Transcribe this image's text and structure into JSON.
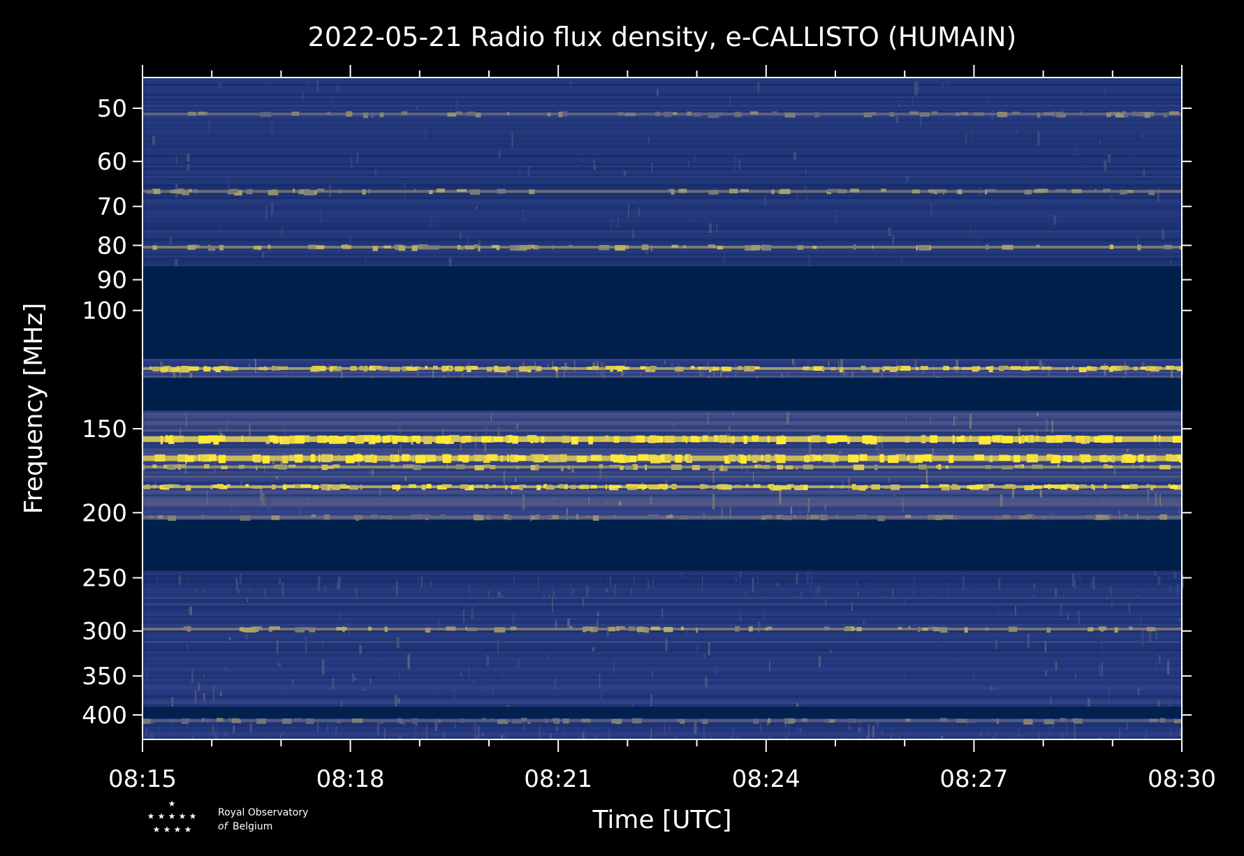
{
  "chart_data": {
    "type": "heatmap",
    "title": "2022-05-21 Radio flux density, e-CALLISTO (HUMAIN)",
    "xlabel": "Time [UTC]",
    "ylabel": "Frequency [MHz]",
    "x_ticks": [
      "08:15",
      "08:18",
      "08:21",
      "08:24",
      "08:27",
      "08:30"
    ],
    "x_range": [
      "08:15",
      "08:30"
    ],
    "y_scale": "log",
    "y_range": [
      45,
      435
    ],
    "y_ticks": [
      50,
      60,
      70,
      80,
      90,
      100,
      150,
      200,
      250,
      300,
      350,
      400
    ],
    "colormap": [
      "#00204c",
      "#2f3f8a",
      "#7c7b78",
      "#c9b95f",
      "#fee838"
    ],
    "background": "#000000",
    "bands": [
      {
        "from": 45,
        "to": 86,
        "level": 0.32
      },
      {
        "from": 86,
        "to": 118,
        "level": 0.0
      },
      {
        "from": 118,
        "to": 126,
        "level": 0.45
      },
      {
        "from": 126,
        "to": 141,
        "level": 0.0
      },
      {
        "from": 141,
        "to": 205,
        "level": 0.5
      },
      {
        "from": 205,
        "to": 244,
        "level": 0.0
      },
      {
        "from": 244,
        "to": 267,
        "level": 0.3
      },
      {
        "from": 267,
        "to": 389,
        "level": 0.38
      },
      {
        "from": 389,
        "to": 405,
        "level": 0.02
      },
      {
        "from": 405,
        "to": 435,
        "level": 0.35
      }
    ],
    "lines": [
      {
        "freq": 51,
        "level": 0.5
      },
      {
        "freq": 66.5,
        "level": 0.55
      },
      {
        "freq": 80.5,
        "level": 0.62
      },
      {
        "freq": 122,
        "level": 0.8
      },
      {
        "freq": 155.5,
        "level": 1.0
      },
      {
        "freq": 166,
        "level": 0.95
      },
      {
        "freq": 171,
        "level": 0.7
      },
      {
        "freq": 183,
        "level": 0.85
      },
      {
        "freq": 203,
        "level": 0.5
      },
      {
        "freq": 298,
        "level": 0.6
      },
      {
        "freq": 408,
        "level": 0.45
      }
    ]
  },
  "logo": {
    "line1": "Royal Observatory",
    "line2_italic": "of",
    "line2": "Belgium"
  }
}
